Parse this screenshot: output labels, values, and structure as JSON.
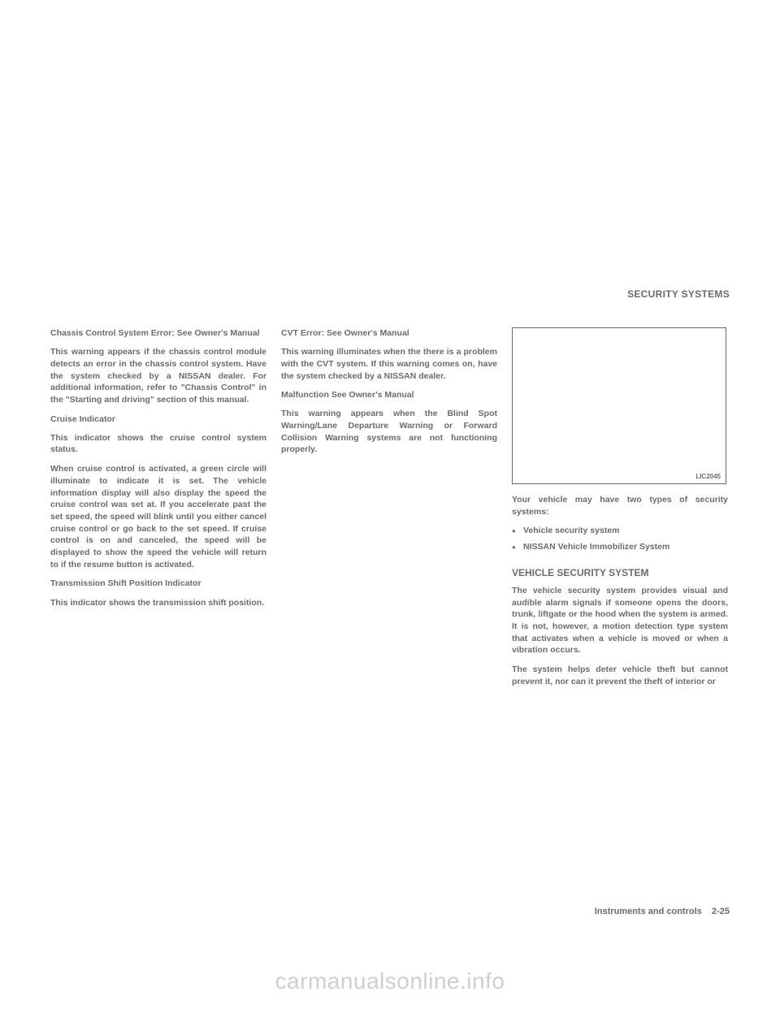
{
  "section_header": "SECURITY SYSTEMS",
  "col1": {
    "h1": "Chassis Control System Error: See Owner's Manual",
    "p1": "This warning appears if the chassis control module detects an error in the chassis control system. Have the system checked by a NISSAN dealer. For additional information, refer to \"Chassis Control\" in the \"Starting and driving\" section of this manual.",
    "h2": "Cruise Indicator",
    "p2": "This indicator shows the cruise control system status.",
    "p3": "When cruise control is activated, a green circle will illuminate to indicate it is set. The vehicle information display will also display the speed the cruise control was set at. If you accelerate past the set speed, the speed will blink until you either cancel cruise control or go back to the set speed. If cruise control is on and canceled, the speed will be displayed to show the speed the vehicle will return to if the resume button is activated.",
    "h3": "Transmission Shift Position Indicator",
    "p4": "This indicator shows the transmission shift position."
  },
  "col2": {
    "h1": "CVT Error: See Owner's Manual",
    "p1": "This warning illuminates when the there is a problem with the CVT system. If this warning comes on, have the system checked by a NISSAN dealer.",
    "h2": "Malfunction See Owner's Manual",
    "p2": "This warning appears when the Blind Spot Warning/Lane Departure Warning or Forward Collision Warning systems are not functioning properly."
  },
  "col3": {
    "figure_code": "LIC2045",
    "p1": "Your vehicle may have two types of security systems:",
    "bullets": [
      "Vehicle security system",
      "NISSAN Vehicle Immobilizer System"
    ],
    "section_title": "VEHICLE SECURITY SYSTEM",
    "p2": "The vehicle security system provides visual and audible alarm signals if someone opens the doors, trunk, liftgate or the hood when the system is armed. It is not, however, a motion detection type system that activates when a vehicle is moved or when a vibration occurs.",
    "p3": "The system helps deter vehicle theft but cannot prevent it, nor can it prevent the theft of interior or"
  },
  "footer": "Instruments and controls    2-25",
  "watermark": "carmanualsonline.info"
}
